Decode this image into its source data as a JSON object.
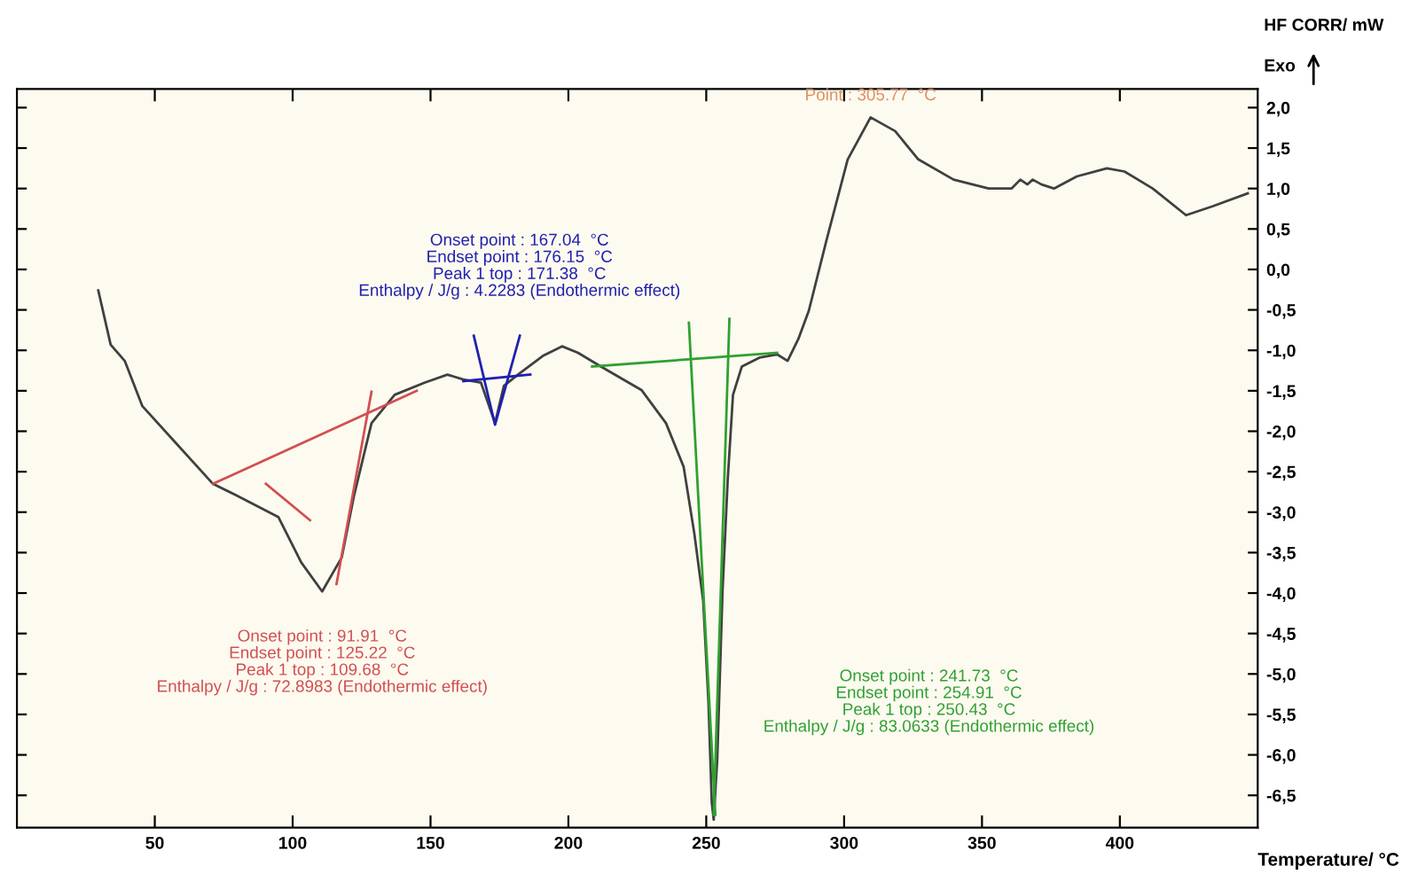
{
  "chart_data": {
    "type": "line",
    "xlabel": "Temperature/ °C",
    "ylabel": "HF CORR/ mW",
    "xlim": [
      0,
      450
    ],
    "xticks": [
      50,
      100,
      150,
      200,
      250,
      300,
      350,
      400
    ],
    "ylim": [
      -6.9,
      2.23
    ],
    "yticks": [
      {
        "value": 2.0,
        "label": "2,0"
      },
      {
        "value": 1.5,
        "label": "1,5"
      },
      {
        "value": 1.0,
        "label": "1,0"
      },
      {
        "value": 0.5,
        "label": "0,5"
      },
      {
        "value": 0.0,
        "label": "0,0"
      },
      {
        "value": -0.5,
        "label": "-0,5"
      },
      {
        "value": -1.0,
        "label": "-1,0"
      },
      {
        "value": -1.5,
        "label": "-1,5"
      },
      {
        "value": -2.0,
        "label": "-2,0"
      },
      {
        "value": -2.5,
        "label": "-2,5"
      },
      {
        "value": -3.0,
        "label": "-3,0"
      },
      {
        "value": -3.5,
        "label": "-3,5"
      },
      {
        "value": -4.0,
        "label": "-4,0"
      },
      {
        "value": -4.5,
        "label": "-4,5"
      },
      {
        "value": -5.0,
        "label": "-5,0"
      },
      {
        "value": -5.5,
        "label": "-5,5"
      },
      {
        "value": -6.0,
        "label": "-6,0"
      },
      {
        "value": -6.5,
        "label": "-6,5"
      }
    ],
    "grid": false,
    "legend": false,
    "series": [
      {
        "color": "#404040",
        "x": [
          29.5,
          34.0,
          39.1,
          45.5,
          58.3,
          71.1,
          79.4,
          94.8,
          103.1,
          110.7,
          117.8,
          122.3,
          128.6,
          137.0,
          147.8,
          156.1,
          161.9,
          168.3,
          173.4,
          176.6,
          181.7,
          190.7,
          197.7,
          203.5,
          211.8,
          226.5,
          235.4,
          241.8,
          245.7,
          248.9,
          250.8,
          252.0,
          252.7,
          254.0,
          255.9,
          257.8,
          259.7,
          262.9,
          269.3,
          275.7,
          279.5,
          283.4,
          287.2,
          293.6,
          301.3,
          309.6,
          318.5,
          326.9,
          339.7,
          352.4,
          360.7,
          363.9,
          366.5,
          368.4,
          371.6,
          376.1,
          384.4,
          395.3,
          401.7,
          411.9,
          424.0,
          433.6,
          446.4
        ],
        "values": [
          -0.26,
          -0.93,
          -1.13,
          -1.69,
          -2.17,
          -2.65,
          -2.79,
          -3.06,
          -3.62,
          -3.98,
          -3.56,
          -2.79,
          -1.9,
          -1.55,
          -1.4,
          -1.3,
          -1.36,
          -1.4,
          -1.9,
          -1.44,
          -1.3,
          -1.07,
          -0.95,
          -1.03,
          -1.2,
          -1.49,
          -1.9,
          -2.44,
          -3.27,
          -4.1,
          -5.35,
          -6.59,
          -6.8,
          -6.05,
          -3.98,
          -2.59,
          -1.55,
          -1.2,
          -1.09,
          -1.05,
          -1.13,
          -0.86,
          -0.51,
          0.36,
          1.36,
          1.88,
          1.71,
          1.36,
          1.11,
          1.0,
          1.0,
          1.11,
          1.05,
          1.11,
          1.05,
          1.0,
          1.15,
          1.25,
          1.21,
          1.0,
          0.67,
          0.78,
          0.94
        ]
      },
      {
        "color": "#d05050",
        "x": [
          71.1,
          145.0
        ],
        "values": [
          -2.65,
          -1.5
        ]
      },
      {
        "color": "#d05050",
        "x": [
          90.3,
          106.3
        ],
        "values": [
          -2.65,
          -3.1
        ]
      },
      {
        "color": "#d05050",
        "x": [
          128.6,
          115.9
        ],
        "values": [
          -1.51,
          -3.89
        ]
      },
      {
        "color": "#2020b0",
        "x": [
          161.9,
          186.2
        ],
        "values": [
          -1.38,
          -1.3
        ]
      },
      {
        "color": "#2020b0",
        "x": [
          165.7,
          173.4,
          182.4
        ],
        "values": [
          -0.82,
          -1.92,
          -0.82
        ]
      },
      {
        "color": "#30a030",
        "x": [
          208.6,
          275.7
        ],
        "values": [
          -1.2,
          -1.03
        ]
      },
      {
        "color": "#30a030",
        "x": [
          243.7,
          253.3
        ],
        "values": [
          -0.66,
          -6.74
        ]
      },
      {
        "color": "#30a030",
        "x": [
          258.4,
          252.7
        ],
        "values": [
          -0.61,
          -6.74
        ]
      }
    ],
    "annotations": [
      {
        "text": "Point : 305.77  °C",
        "x": 309.6,
        "y": 1.88
      },
      "Onset point : 167.04  °C\nEndset point : 176.15  °C\nPeak 1 top : 171.38  °C\nEnthalpy / J/g : 4.2283 (Endothermic effect)",
      {
        "text": "Onset point : 91.91  °C\nEndset point : 125.22  °C\nPeak 1 top : 109.68  °C\nEnthalpy / J/g : 72.8983 (Endothermic effect)",
        "x": 110.7,
        "y": -3.98
      },
      "Onset point : 241.73  °C\nEndset point : 254.91  °C\nPeak 1 top : 250.43  °C\nEnthalpy / J/g : 83.0633 (Endothermic effect)",
      "Exo"
    ]
  }
}
